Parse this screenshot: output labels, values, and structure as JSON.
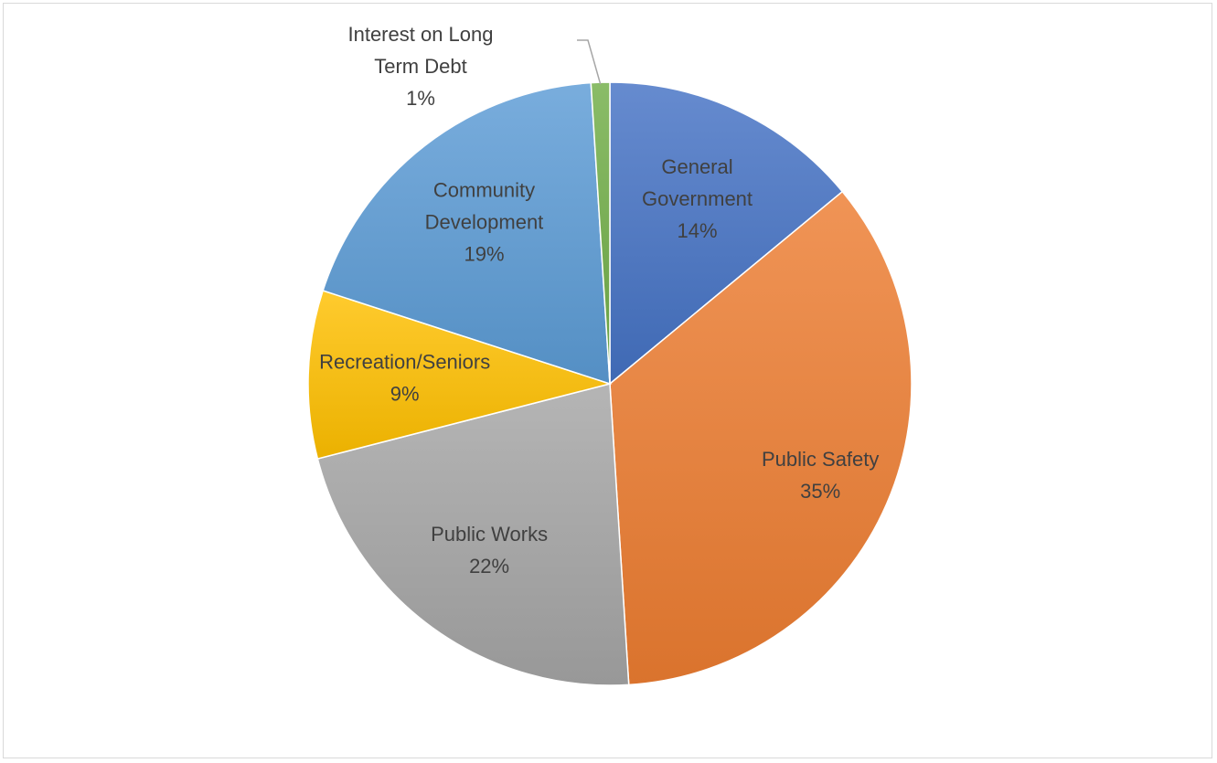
{
  "chart_data": {
    "type": "pie",
    "title": "",
    "slices": [
      {
        "label": "General Government",
        "label_lines": [
          "General",
          "Government"
        ],
        "percent_label": "14%",
        "value": 14,
        "color": "#4472c4"
      },
      {
        "label": "Public Safety",
        "label_lines": [
          "Public Safety"
        ],
        "percent_label": "35%",
        "value": 35,
        "color": "#ed7d31"
      },
      {
        "label": "Public Works",
        "label_lines": [
          "Public Works"
        ],
        "percent_label": "22%",
        "value": 22,
        "color": "#a5a5a5"
      },
      {
        "label": "Recreation/Seniors",
        "label_lines": [
          "Recreation/Seniors"
        ],
        "percent_label": "9%",
        "value": 9,
        "color": "#ffc000"
      },
      {
        "label": "Community Development",
        "label_lines": [
          "Community",
          "Development"
        ],
        "percent_label": "19%",
        "value": 19,
        "color": "#5b9bd5"
      },
      {
        "label": "Interest on Long Term Debt",
        "label_lines": [
          "Interest on Long",
          "Term Debt"
        ],
        "percent_label": "1%",
        "value": 1,
        "color": "#70ad47"
      }
    ],
    "legend": "none",
    "data_labels": "category name and percentage"
  }
}
